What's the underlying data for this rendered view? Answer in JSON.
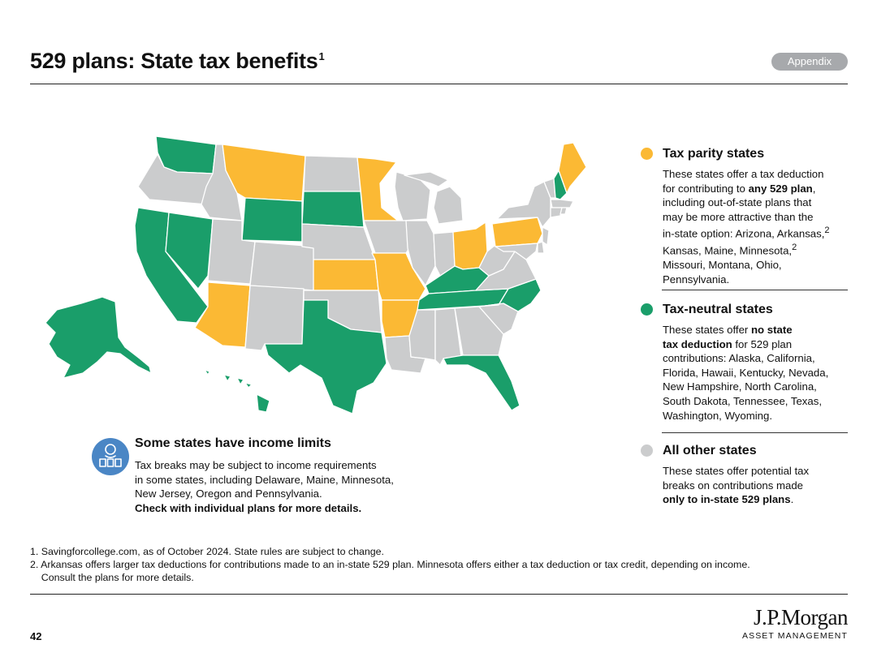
{
  "header": {
    "title": "529 plans: State tax benefits",
    "title_footnote": "1",
    "badge": "Appendix"
  },
  "colors": {
    "parity": "#fbb934",
    "neutral": "#1a9e6a",
    "other": "#cbcccd",
    "icon_bg": "#4a86c5"
  },
  "legend": {
    "parity": {
      "title": "Tax parity states",
      "lines": [
        "These states offer a tax deduction",
        "for contributing to <b>any 529 plan</b>,",
        "including out-of-state plans that",
        "may be more attractive than the",
        "in-state option: Arizona, Arkansas,<sup>2</sup>",
        "Kansas, Maine, Minnesota,<sup>2</sup>",
        "Missouri, Montana, Ohio,",
        "Pennsylvania."
      ]
    },
    "neutral": {
      "title": "Tax-neutral states",
      "lines": [
        "These states offer <b>no state</b>",
        "<b>tax deduction</b> for 529 plan",
        "contributions: Alaska, California,",
        "Florida, Hawaii, Kentucky, Nevada,",
        "New Hampshire, North Carolina,",
        "South Dakota, Tennessee, Texas,",
        "Washington, Wyoming."
      ]
    },
    "other": {
      "title": "All other states",
      "lines": [
        "These states offer potential tax",
        "breaks on contributions made",
        "<b>only to in-state 529 plans</b>."
      ]
    }
  },
  "income": {
    "title": "Some states have income limits",
    "lines": [
      "Tax breaks may be subject to income requirements",
      "in some states, including Delaware, Maine, Minnesota,",
      "New Jersey, Oregon and Pennsylvania.",
      "<b>Check with individual plans for more details.</b>"
    ]
  },
  "footnotes": [
    "1.  Savingforcollege.com, as of October 2024. State rules are subject to change.",
    "2. Arkansas offers larger tax deductions for contributions made to an in-state 529 plan. Minnesota offers either a tax deduction or tax credit, depending on income.",
    "&nbsp;&nbsp;&nbsp;&nbsp;Consult the plans for more details."
  ],
  "page_number": "42",
  "brand": {
    "name": "J.P.Morgan",
    "sub": "ASSET MANAGEMENT"
  },
  "map_states": {
    "parity": [
      "Arizona",
      "Arkansas",
      "Kansas",
      "Maine",
      "Minnesota",
      "Missouri",
      "Montana",
      "Ohio",
      "Pennsylvania"
    ],
    "neutral": [
      "Alaska",
      "California",
      "Florida",
      "Hawaii",
      "Kentucky",
      "Nevada",
      "New Hampshire",
      "North Carolina",
      "South Dakota",
      "Tennessee",
      "Texas",
      "Washington",
      "Wyoming"
    ]
  }
}
